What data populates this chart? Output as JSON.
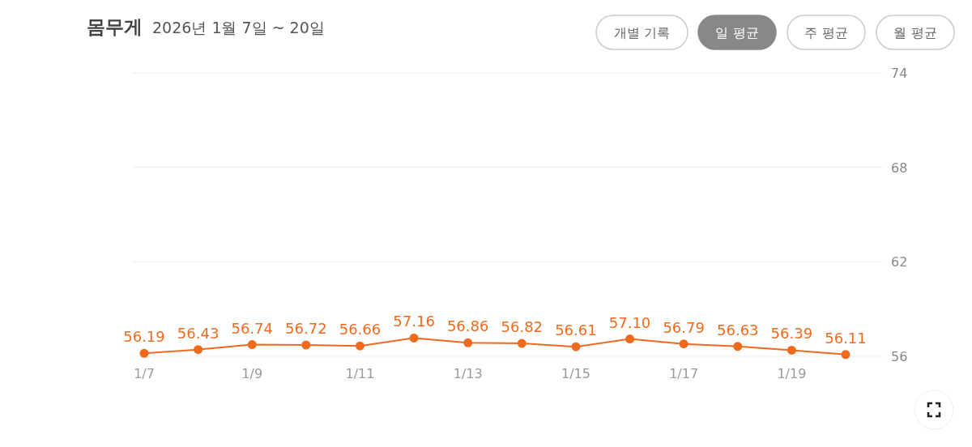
{
  "chart_data": {
    "type": "line",
    "title": "몸무게",
    "subtitle": "2026년 1월 7일 ~ 20일",
    "categories": [
      "1/7",
      null,
      "1/9",
      null,
      "1/11",
      null,
      "1/13",
      null,
      "1/15",
      null,
      "1/17",
      null,
      "1/19",
      null
    ],
    "series": [
      {
        "color": "#f06a1e",
        "values": [
          56.19,
          56.43,
          56.74,
          56.72,
          56.66,
          57.16,
          56.86,
          56.82,
          56.61,
          57.1,
          56.79,
          56.63,
          56.39,
          56.11
        ]
      }
    ],
    "value_labels": [
      "56.19",
      "56.43",
      "56.74",
      "56.72",
      "56.66",
      "57.16",
      "56.86",
      "56.82",
      "56.61",
      "57.10",
      "56.79",
      "56.63",
      "56.39",
      "56.11"
    ],
    "ylim": [
      56,
      74
    ],
    "yticks": [
      56,
      62,
      68,
      74
    ],
    "grid": "y",
    "marker": "circle",
    "annotations": [
      "개별 기록",
      "일 평균",
      "주 평균",
      "월 평균"
    ]
  }
}
